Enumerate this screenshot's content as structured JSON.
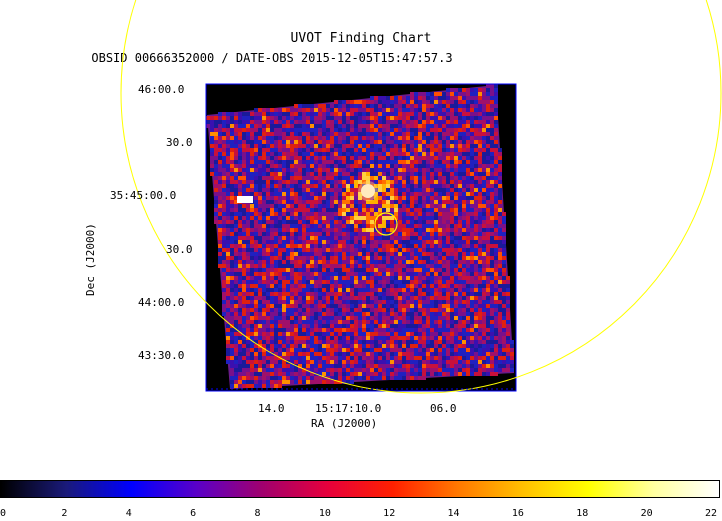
{
  "chart": {
    "title": "UVOT Finding Chart",
    "subtitle": "OBSID 00666352000 / DATE-OBS 2015-12-05T15:47:57.3",
    "xlabel": "RA (J2000)",
    "ylabel": "Dec (J2000)",
    "ra_ticks": [
      "14.0",
      "15:17:10.0",
      "06.0"
    ],
    "dec_ticks": [
      "46:00.0",
      "30.0",
      "35:45:00.0",
      "30.0",
      "44:00.0",
      "43:30.0"
    ]
  },
  "colorbar": {
    "ticks": [
      "0",
      "2",
      "4",
      "6",
      "8",
      "10",
      "12",
      "14",
      "16",
      "18",
      "20",
      "22"
    ],
    "colors": [
      "#000000",
      "#1a1a7a",
      "#0000ff",
      "#5a00c8",
      "#a0006e",
      "#e6003c",
      "#ff2000",
      "#ff7800",
      "#ffc000",
      "#ffff00",
      "#ffffa0",
      "#ffffff"
    ]
  },
  "overlay_colors": {
    "circle": "#ffff00",
    "frame": "#0000ff"
  }
}
